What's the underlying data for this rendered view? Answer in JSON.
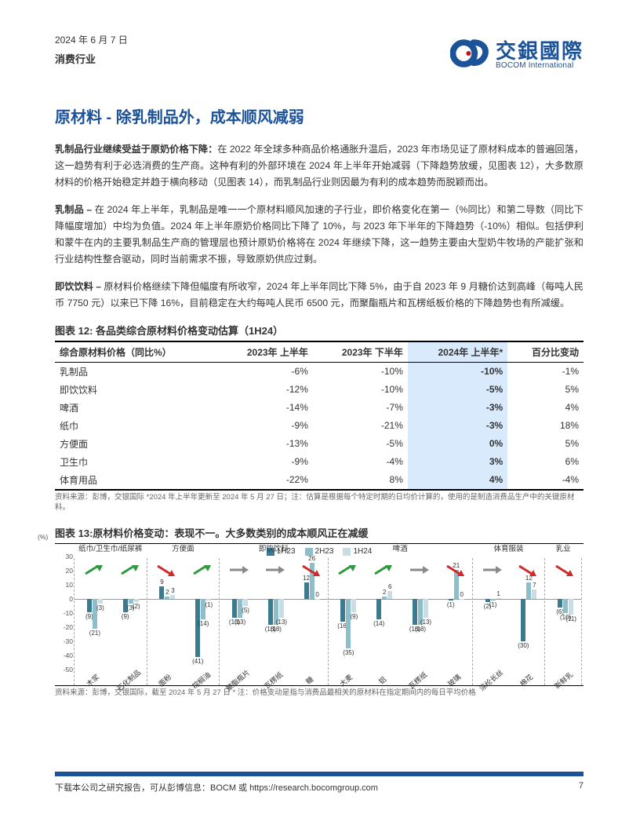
{
  "header": {
    "date": "2024 年 6 月 7 日",
    "sector": "消费行业"
  },
  "logo": {
    "cn": "交銀國際",
    "en": "BOCOM International"
  },
  "title": "原材料 - 除乳制品外，成本顺风减弱",
  "paragraphs": [
    {
      "lead": "乳制品行业继续受益于原奶价格下降：",
      "body": "在 2022 年全球多种商品价格通胀升温后，2023 年市场见证了原材料成本的普遍回落，这一趋势有利于必选消费的生产商。这种有利的外部环境在 2024 年上半年开始减弱（下降趋势放缓，见图表 12），大多数原材料的价格开始稳定并趋于横向移动（见图表 14），而乳制品行业则因最为有利的成本趋势而脱颖而出。"
    },
    {
      "lead": "乳制品 – ",
      "body": "在 2024 年上半年，乳制品是唯一一个原材料顺风加速的子行业，即价格变化在第一（%同比）和第二导数（同比下降幅度增加）中均为负值。2024 年上半年原奶价格同比下降了 10%，与 2023 年下半年的下降趋势（-10%）相似。包括伊利和蒙牛在内的主要乳制品生产商的管理层也预计原奶价格将在 2024 年继续下降，这一趋势主要由大型奶牛牧场的产能扩张和行业结构性整合驱动，同时当前需求不振，导致原奶供应过剩。"
    },
    {
      "lead": "即饮饮料 – ",
      "body": "原材料价格继续下降但幅度有所收窄，2024 年上半年同比下降 5%，由于自 2023 年 9 月糖价达到高峰（每吨人民币 7750 元）以来已下降 16%，目前稳定在大约每吨人民币 6500 元，而聚酯瓶片和瓦楞纸板价格的下降趋势也有所减缓。"
    }
  ],
  "table": {
    "title": "图表 12: 各品类综合原材料价格变动估算（1H24）",
    "headers": [
      "综合原材料价格（同比%）",
      "2023年 上半年",
      "2023年 下半年",
      "2024年 上半年*",
      "百分比变动"
    ],
    "rows": [
      [
        "乳制品",
        "-6%",
        "-10%",
        "-10%",
        "-1%"
      ],
      [
        "即饮饮料",
        "-12%",
        "-10%",
        "-5%",
        "5%"
      ],
      [
        "啤酒",
        "-14%",
        "-7%",
        "-3%",
        "4%"
      ],
      [
        "纸巾",
        "-9%",
        "-21%",
        "-3%",
        "18%"
      ],
      [
        "方便面",
        "-13%",
        "-5%",
        "0%",
        "5%"
      ],
      [
        "卫生巾",
        "-9%",
        "-4%",
        "3%",
        "6%"
      ],
      [
        "体育用品",
        "-22%",
        "8%",
        "4%",
        "-4%"
      ]
    ],
    "src": "资料来源：彭博，交银国际 *2024 年上半年更新至 2024 年 5 月 27 日；注：估算是根据每个特定时期的日均价计算的，使用的是制造消费品生产中的关键原材料。"
  },
  "chart": {
    "title": "图表 13:原材料价格变动：表现不一。大多数类别的成本顺风正在减缓",
    "legend": [
      {
        "label": "1H23",
        "color": "#3b7a8f"
      },
      {
        "label": "2H23",
        "color": "#8fbecb"
      },
      {
        "label": "1H24",
        "color": "#c8dde4"
      }
    ],
    "ylim": [
      -50,
      30
    ],
    "yticks": [
      30,
      20,
      10,
      0,
      -10,
      -20,
      -30,
      -40,
      -50
    ],
    "colors": {
      "h1": "#3b7a8f",
      "h2": "#8fbecb",
      "h3": "#c8dde4",
      "green": "#2e9a3d",
      "red": "#d02a2a",
      "gray": "#8a8a8a"
    },
    "src": "资料来源：彭博，交银国际，截至 2024 年 5 月 27 日 * 注：价格变动是指与消费品最相关的原材料在指定期间内的每日平均价格",
    "groups": [
      {
        "name": "纸巾/卫生巾/纸尿裤",
        "materials": [
          {
            "label": "木浆",
            "vals": [
              -9,
              -21,
              -3
            ],
            "arrow": "up-green"
          },
          {
            "label": "石化制品",
            "vals": [
              -9,
              -3,
              -2
            ],
            "arrow": "up-green"
          }
        ]
      },
      {
        "name": "方便面",
        "materials": [
          {
            "label": "面粉",
            "vals": [
              9,
              2,
              3
            ],
            "arrow": "down-red"
          },
          {
            "label": "棕榈油",
            "vals": [
              -41,
              -14,
              -1
            ],
            "arrow": "up-green"
          }
        ]
      },
      {
        "name": "即饮饮料",
        "materials": [
          {
            "label": "聚酯瓶片",
            "vals": [
              -13,
              -13,
              -5
            ],
            "arrow": "flat"
          },
          {
            "label": "瓦楞纸",
            "vals": [
              -18,
              -18,
              -13
            ],
            "arrow": "flat"
          },
          {
            "label": "糖",
            "vals": [
              12,
              26,
              0
            ],
            "arrow": "down-red"
          }
        ]
      },
      {
        "name": "啤酒",
        "materials": [
          {
            "label": "大麦",
            "vals": [
              -16,
              -35,
              -9
            ],
            "arrow": "up-green"
          },
          {
            "label": "铝",
            "vals": [
              -14,
              2,
              6
            ],
            "arrow": "up-green"
          },
          {
            "label": "瓦楞纸",
            "vals": [
              -18,
              -18,
              -13
            ],
            "arrow": "flat"
          },
          {
            "label": "玻璃",
            "vals": [
              -1,
              21,
              0
            ],
            "arrow": "down-red"
          }
        ]
      },
      {
        "name": "体育服装",
        "materials": [
          {
            "label": "涤纶长丝",
            "vals": [
              -2,
              -1,
              1
            ],
            "arrow": "flat"
          },
          {
            "label": "棉花",
            "vals": [
              -30,
              12,
              7
            ],
            "arrow": "down-red"
          }
        ]
      },
      {
        "name": "乳业",
        "materials": [
          {
            "label": "新鲜乳",
            "vals": [
              -6,
              -10,
              -11
            ],
            "arrow": "down-red"
          }
        ]
      }
    ]
  },
  "footer": {
    "text": "下载本公司之研究报告，可从彭博信息：BOCM 或 https://research.bocomgroup.com",
    "page": "7"
  }
}
